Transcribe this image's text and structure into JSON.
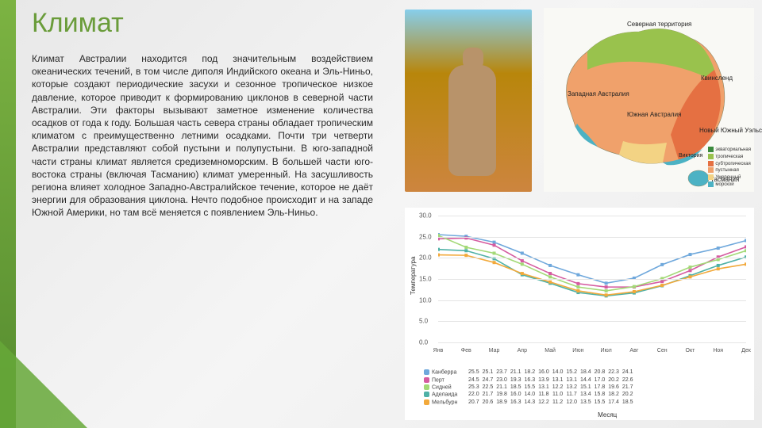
{
  "title": "Климат",
  "body": "Климат Австралии находится под значительным воздействием океанических течений, в том числе диполя Индийского океана и Эль-Ниньо, которые создают периодические засухи и сезонное тропическое низкое давление, которое приводит к формированию циклонов в северной части Австралии. Эти факторы вызывают заметное изменение количества осадков от года к году. Большая часть севера страны обладает тропическим климатом с преимущественно летними осадками. Почти три четверти Австралии представляют собой пустыни и полупустыни. В юго-западной части страны климат является средиземноморским. В большей части юго-востока страны (включая Тасманию) климат умеренный. На засушливость региона влияет холодное Западно-Австралийское течение, которое не даёт энергии для образования циклона. Нечто подобное происходит и на западе Южной Америки, но там всё меняется с появлением Эль-Ниньо.",
  "chart": {
    "type": "line",
    "yaxis_label": "Температура",
    "xaxis_label": "Месяц",
    "ylim": [
      0,
      30
    ],
    "ytick_step": 5,
    "grid_color": "#e5e5e5",
    "background": "#ffffff",
    "months": [
      "Янв",
      "Фев",
      "Мар",
      "Апр",
      "Май",
      "Июн",
      "Июл",
      "Авг",
      "Сен",
      "Окт",
      "Ноя",
      "Дек"
    ],
    "series": [
      {
        "name": "Канберра",
        "color": "#6fa8dc",
        "values": [
          25.5,
          25.1,
          23.7,
          21.1,
          18.2,
          16.0,
          14.0,
          15.2,
          18.4,
          20.8,
          22.3,
          24.1
        ]
      },
      {
        "name": "Перт",
        "color": "#d55ba0",
        "values": [
          24.5,
          24.7,
          23.0,
          19.3,
          16.3,
          13.9,
          13.1,
          13.1,
          14.4,
          17.0,
          20.2,
          22.6
        ]
      },
      {
        "name": "Сидней",
        "color": "#a3d977",
        "values": [
          25.3,
          22.5,
          21.1,
          18.5,
          15.5,
          13.1,
          12.2,
          13.2,
          15.1,
          17.8,
          19.6,
          21.7
        ]
      },
      {
        "name": "Аделаида",
        "color": "#4fb1a6",
        "values": [
          22.0,
          21.7,
          19.8,
          16.0,
          14.0,
          11.8,
          11.0,
          11.7,
          13.4,
          15.8,
          18.2,
          20.2
        ]
      },
      {
        "name": "Мельбурн",
        "color": "#f2a93b",
        "values": [
          20.7,
          20.6,
          18.9,
          16.3,
          14.3,
          12.2,
          11.2,
          12.0,
          13.5,
          15.5,
          17.4,
          18.5
        ]
      }
    ]
  },
  "map": {
    "background": "#f9f9f5",
    "zones": {
      "equatorial": {
        "label": "экваториальная",
        "color": "#3b8a3e"
      },
      "tropical": {
        "label": "тропическая",
        "color": "#99c24d"
      },
      "subtropical": {
        "label": "субтропическая",
        "color": "#e57042"
      },
      "desert": {
        "label": "пустынная",
        "color": "#f0a16b"
      },
      "grassland": {
        "label": "Умеренный",
        "color": "#f3d384"
      },
      "temperate": {
        "label": "морской",
        "color": "#4cb2c4"
      }
    },
    "labels": {
      "nt": "Северная территория",
      "wa": "Западная Австралия",
      "sa": "Южная Австралия",
      "qld": "Квинсленд",
      "nsw": "Новый Южный Уэльс",
      "vic": "Виктория",
      "tas": "Тасмания"
    }
  },
  "accent_color": "#6a9c3a"
}
